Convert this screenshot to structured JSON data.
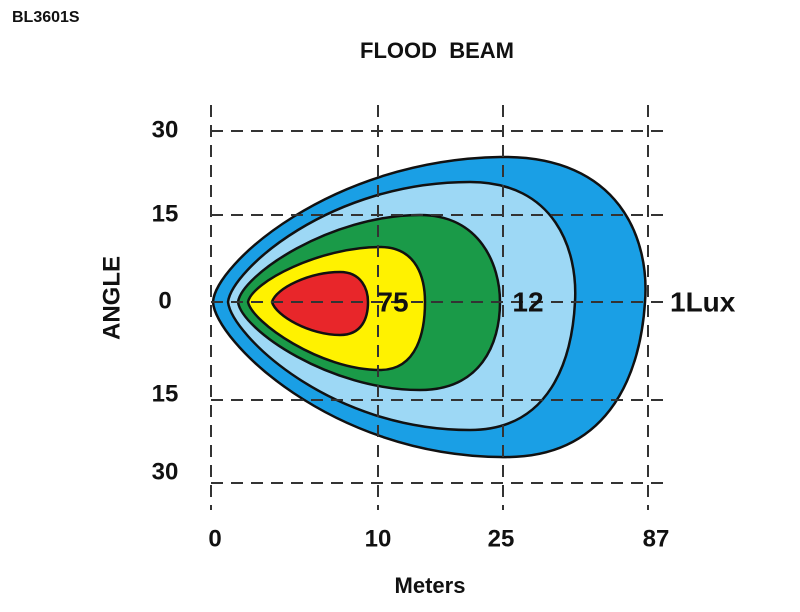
{
  "header": {
    "model": "BL3601S",
    "title": "FLOOD  BEAM"
  },
  "y_axis": {
    "label": "ANGLE",
    "ticks": [
      "30",
      "15",
      "0",
      "15",
      "30"
    ]
  },
  "x_axis": {
    "label": "Meters",
    "ticks": [
      "0",
      "10",
      "25",
      "87"
    ]
  },
  "contours": {
    "labels": [
      "75",
      "12",
      "1Lux"
    ]
  }
}
